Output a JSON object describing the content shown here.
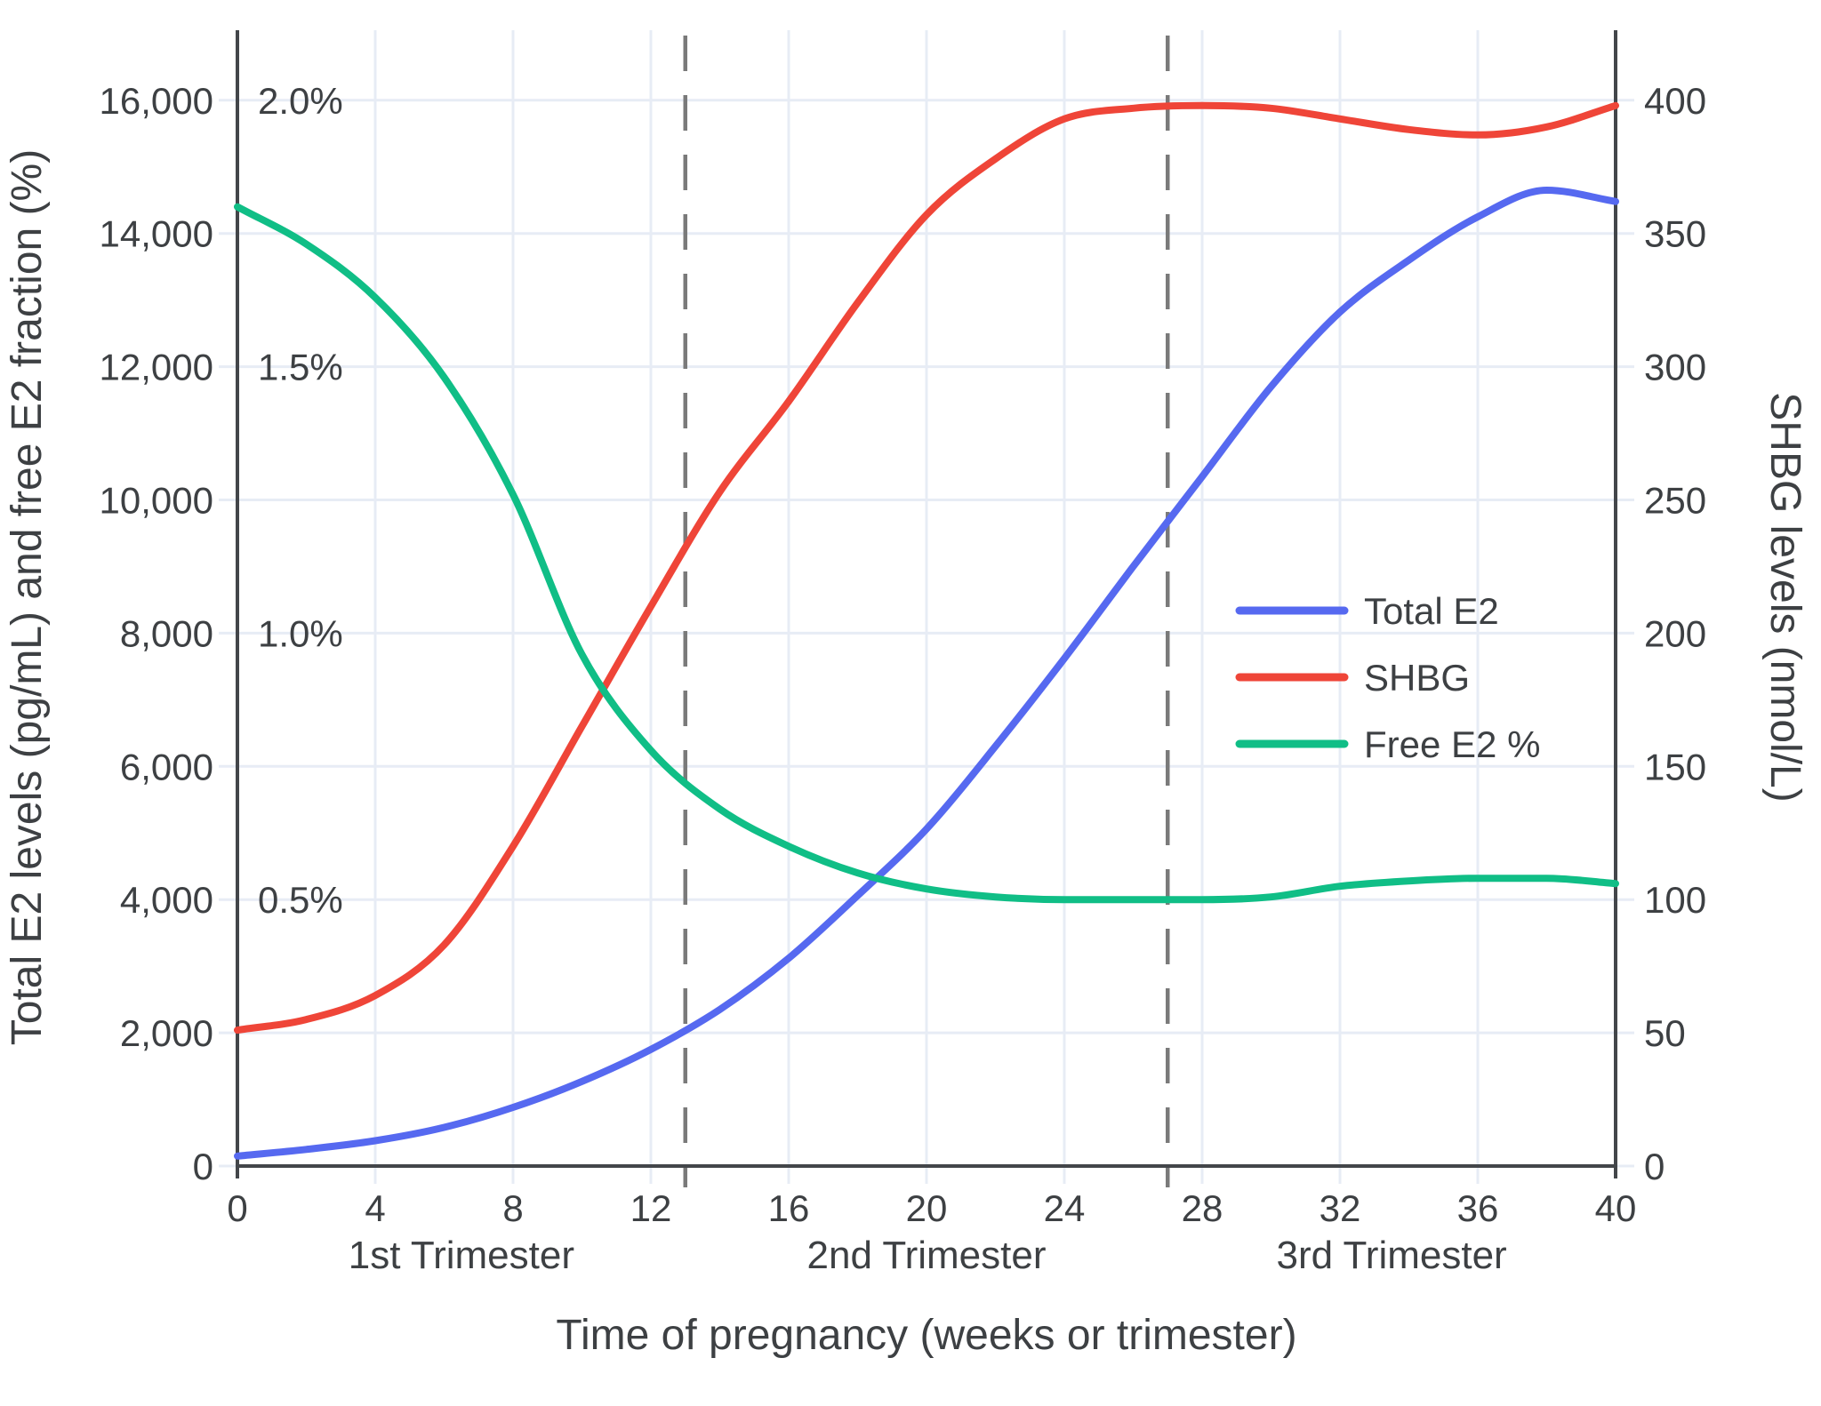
{
  "chart_data": {
    "type": "line",
    "title": "",
    "x_label": "Time of pregnancy (weeks or trimester)",
    "x_range": [
      0,
      40
    ],
    "x_ticks": [
      0,
      4,
      8,
      12,
      16,
      20,
      24,
      28,
      32,
      36,
      40
    ],
    "x": [
      0,
      2,
      4,
      6,
      8,
      10,
      12,
      14,
      16,
      18,
      20,
      22,
      24,
      26,
      28,
      30,
      32,
      34,
      36,
      38,
      40
    ],
    "series": [
      {
        "name": "Total E2",
        "axis": "left",
        "color": "#5669f0",
        "units": "pg/mL",
        "values": [
          150,
          250,
          380,
          580,
          880,
          1270,
          1750,
          2350,
          3120,
          4060,
          5060,
          6300,
          7620,
          9000,
          10350,
          11700,
          12820,
          13600,
          14250,
          14650,
          14480
        ]
      },
      {
        "name": "SHBG",
        "axis": "right",
        "color": "#ef4538",
        "units": "nmol/L",
        "values": [
          51,
          55,
          64,
          83,
          120,
          165,
          210,
          253,
          287,
          324,
          357,
          378,
          393,
          397,
          398,
          397,
          393,
          389,
          387,
          390,
          398
        ]
      },
      {
        "name": "Free E2 %",
        "axis": "percent",
        "color": "#10be86",
        "units": "%",
        "values": [
          1.8,
          1.73,
          1.63,
          1.48,
          1.26,
          0.96,
          0.78,
          0.67,
          0.6,
          0.55,
          0.52,
          0.505,
          0.5,
          0.5,
          0.5,
          0.505,
          0.525,
          0.535,
          0.54,
          0.54,
          0.53
        ]
      }
    ],
    "left_axis": {
      "label": "Total E2 levels (pg/mL) and free E2 fraction (%)",
      "range": [
        0,
        17100
      ],
      "tick_values": [
        0,
        2000,
        4000,
        6000,
        8000,
        10000,
        12000,
        14000,
        16000
      ],
      "tick_labels": [
        "0",
        "2,000",
        "4,000",
        "6,000",
        "8,000",
        "10,000",
        "12,000",
        "14,000",
        "16,000"
      ]
    },
    "percent_ticks": [
      {
        "value": 0.5,
        "label": "0.5%"
      },
      {
        "value": 1.0,
        "label": "1.0%"
      },
      {
        "value": 1.5,
        "label": "1.5%"
      },
      {
        "value": 2.0,
        "label": "2.0%"
      }
    ],
    "percent_to_left_units": 8000,
    "right_axis": {
      "label": "SHBG levels (nmol/L)",
      "range": [
        0,
        427
      ],
      "tick_values": [
        0,
        50,
        100,
        150,
        200,
        250,
        300,
        350,
        400
      ],
      "tick_labels": [
        "0",
        "50",
        "100",
        "150",
        "200",
        "250",
        "300",
        "350",
        "400"
      ]
    },
    "trimesters": [
      {
        "label": "1st Trimester",
        "start_week": 0,
        "end_week": 13
      },
      {
        "label": "2nd Trimester",
        "start_week": 13,
        "end_week": 27
      },
      {
        "label": "3rd Trimester",
        "start_week": 27,
        "end_week": 40
      }
    ],
    "boundary_weeks": [
      13,
      27
    ],
    "legend": {
      "position": "middle-right",
      "entries": [
        "Total E2",
        "SHBG",
        "Free E2 %"
      ]
    },
    "grid": true,
    "colors": {
      "background": "#ffffff",
      "grid": "#e7ecf5",
      "axis": "#43464a",
      "text": "#3d4043",
      "dashed_boundary": "#7a7a7a"
    }
  }
}
